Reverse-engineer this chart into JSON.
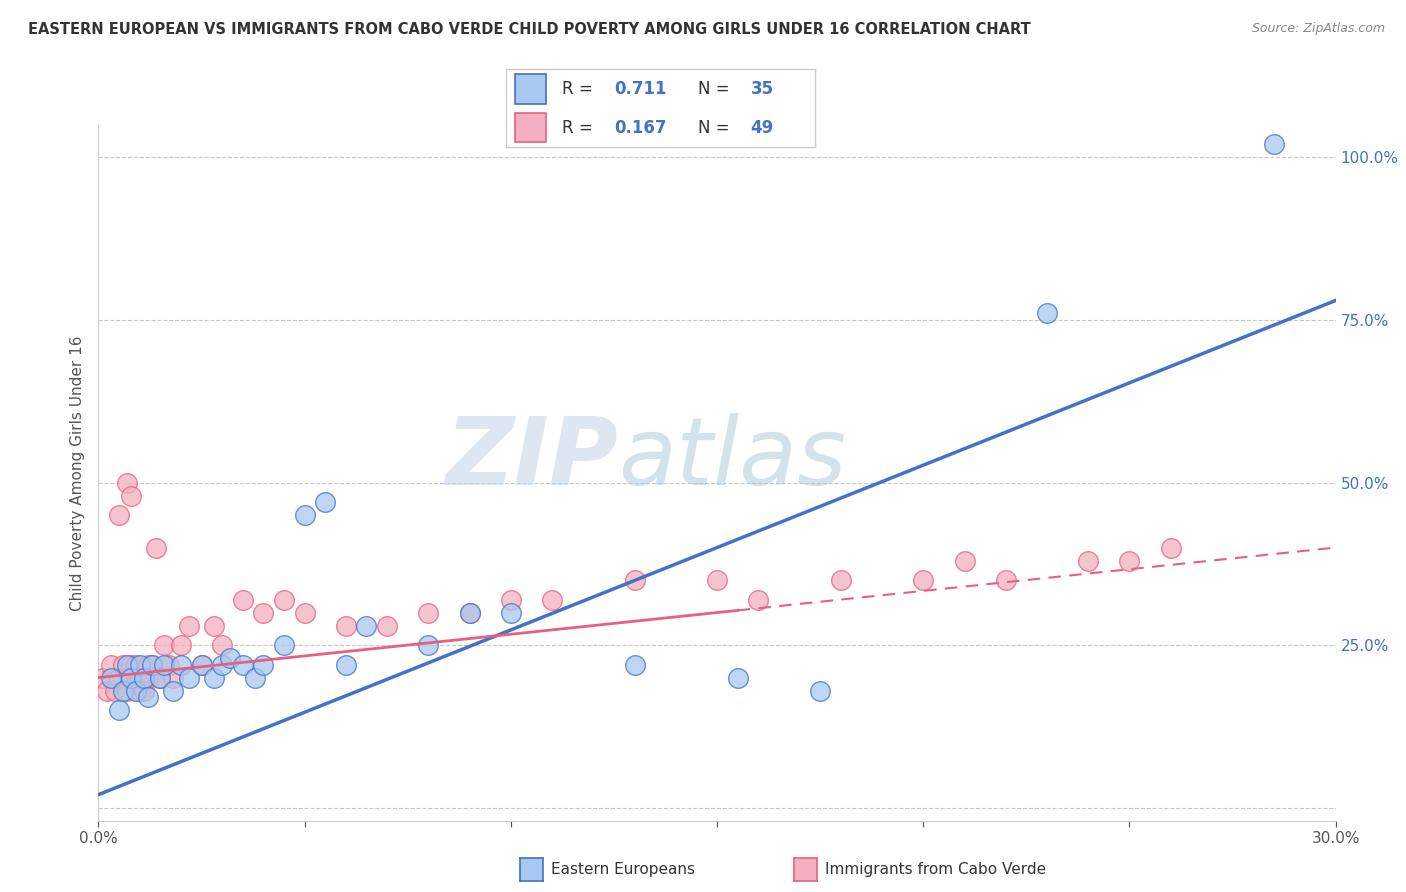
{
  "title": "EASTERN EUROPEAN VS IMMIGRANTS FROM CABO VERDE CHILD POVERTY AMONG GIRLS UNDER 16 CORRELATION CHART",
  "source": "Source: ZipAtlas.com",
  "ylabel": "Child Poverty Among Girls Under 16",
  "xlim": [
    0.0,
    0.3
  ],
  "ylim": [
    -0.02,
    1.05
  ],
  "xticks": [
    0.0,
    0.05,
    0.1,
    0.15,
    0.2,
    0.25,
    0.3
  ],
  "xticklabels": [
    "0.0%",
    "",
    "",
    "",
    "",
    "",
    "30.0%"
  ],
  "yticks": [
    0.0,
    0.25,
    0.5,
    0.75,
    1.0
  ],
  "yticklabels": [
    "",
    "25.0%",
    "50.0%",
    "75.0%",
    "100.0%"
  ],
  "color_blue": "#A8C8F0",
  "color_pink": "#F4B0C0",
  "color_blue_line": "#4472C4",
  "color_pink_line": "#E86080",
  "watermark_zip": "ZIP",
  "watermark_atlas": "atlas",
  "blue_scatter_x": [
    0.003,
    0.005,
    0.006,
    0.007,
    0.008,
    0.009,
    0.01,
    0.011,
    0.012,
    0.013,
    0.015,
    0.016,
    0.018,
    0.02,
    0.022,
    0.025,
    0.028,
    0.03,
    0.032,
    0.035,
    0.038,
    0.04,
    0.045,
    0.05,
    0.055,
    0.06,
    0.065,
    0.08,
    0.09,
    0.1,
    0.13,
    0.155,
    0.175,
    0.23,
    0.285
  ],
  "blue_scatter_y": [
    0.2,
    0.15,
    0.18,
    0.22,
    0.2,
    0.18,
    0.22,
    0.2,
    0.17,
    0.22,
    0.2,
    0.22,
    0.18,
    0.22,
    0.2,
    0.22,
    0.2,
    0.22,
    0.23,
    0.22,
    0.2,
    0.22,
    0.25,
    0.45,
    0.47,
    0.22,
    0.28,
    0.25,
    0.3,
    0.3,
    0.22,
    0.2,
    0.18,
    0.76,
    1.02
  ],
  "pink_scatter_x": [
    0.001,
    0.002,
    0.003,
    0.004,
    0.005,
    0.005,
    0.006,
    0.007,
    0.007,
    0.008,
    0.008,
    0.009,
    0.009,
    0.01,
    0.01,
    0.011,
    0.012,
    0.012,
    0.013,
    0.014,
    0.015,
    0.016,
    0.017,
    0.018,
    0.02,
    0.022,
    0.025,
    0.028,
    0.03,
    0.035,
    0.04,
    0.045,
    0.05,
    0.06,
    0.07,
    0.08,
    0.09,
    0.1,
    0.11,
    0.13,
    0.15,
    0.16,
    0.18,
    0.2,
    0.21,
    0.22,
    0.24,
    0.25,
    0.26
  ],
  "pink_scatter_y": [
    0.2,
    0.18,
    0.22,
    0.18,
    0.2,
    0.45,
    0.22,
    0.5,
    0.18,
    0.22,
    0.48,
    0.2,
    0.22,
    0.18,
    0.2,
    0.18,
    0.22,
    0.2,
    0.22,
    0.4,
    0.2,
    0.25,
    0.22,
    0.2,
    0.25,
    0.28,
    0.22,
    0.28,
    0.25,
    0.32,
    0.3,
    0.32,
    0.3,
    0.28,
    0.28,
    0.3,
    0.3,
    0.32,
    0.32,
    0.35,
    0.35,
    0.32,
    0.35,
    0.35,
    0.38,
    0.35,
    0.38,
    0.38,
    0.4
  ]
}
